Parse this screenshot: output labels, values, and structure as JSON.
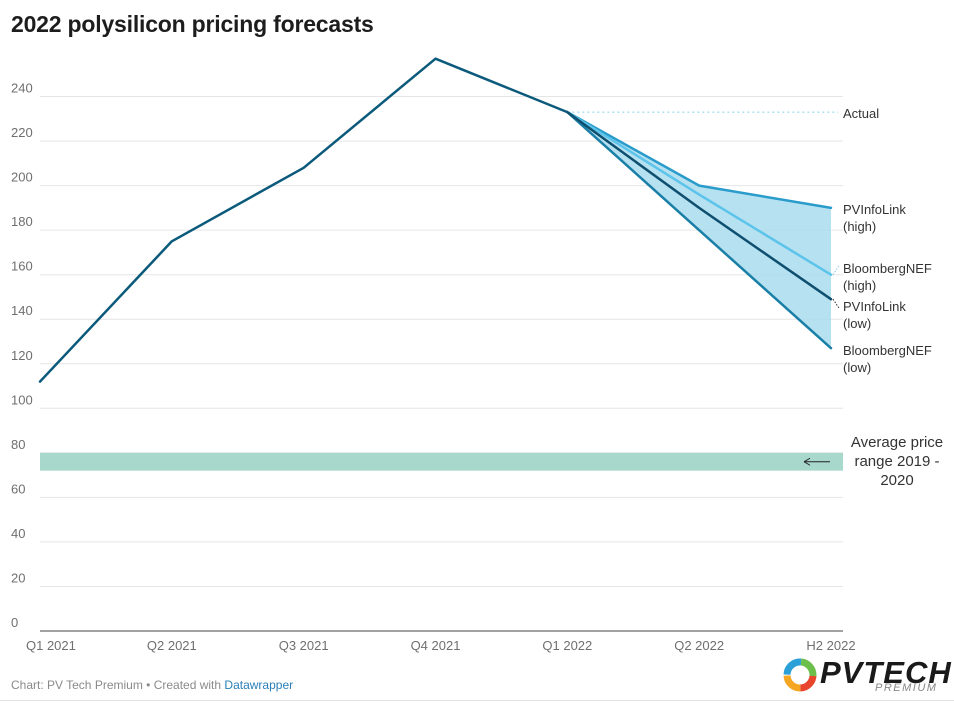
{
  "title": "2022 polysilicon pricing forecasts",
  "footer": {
    "source": "Chart: PV Tech Premium • Created with ",
    "tool": "Datawrapper"
  },
  "logo": {
    "main": "PVTECH",
    "sub": "PREMIUM"
  },
  "range_label_lines": [
    "Average price",
    "range 2019 -",
    "2020"
  ],
  "colors": {
    "historical": "#0c5a7b",
    "pvinfolink_high": "#2a9ccb",
    "bnef_high": "#5cc4ea",
    "pvinfolink_low": "#0e4e6e",
    "bnef_low": "#1a7fa6",
    "forecast_band": "#a9dcef",
    "avg_range": "#a8d8cb",
    "actual_ref": "#7fd2ec"
  },
  "chart_data": {
    "type": "line",
    "title": "2022 polysilicon pricing forecasts",
    "categories": [
      "Q1 2021",
      "Q2 2021",
      "Q3 2021",
      "Q4 2021",
      "Q1 2022",
      "Q2 2022",
      "H2 2022"
    ],
    "ylim": [
      0,
      260
    ],
    "yticks": [
      0,
      20,
      40,
      60,
      80,
      100,
      120,
      140,
      160,
      180,
      200,
      220,
      240
    ],
    "grid": true,
    "series": [
      {
        "name": "Actual",
        "values": [
          112,
          175,
          208,
          257,
          233,
          null,
          null
        ]
      },
      {
        "name": "PVInfoLink (high)",
        "values": [
          null,
          null,
          null,
          null,
          233,
          200,
          190
        ]
      },
      {
        "name": "BloombergNEF (high)",
        "values": [
          null,
          null,
          null,
          null,
          233,
          196,
          160
        ]
      },
      {
        "name": "PVInfoLink (low)",
        "values": [
          null,
          null,
          null,
          null,
          233,
          190,
          149
        ]
      },
      {
        "name": "BloombergNEF (low)",
        "values": [
          null,
          null,
          null,
          null,
          233,
          180,
          127
        ]
      }
    ],
    "series_labels": [
      {
        "lines": [
          "Actual"
        ],
        "value": 233
      },
      {
        "lines": [
          "PVInfoLink",
          "(high)"
        ],
        "value": 190
      },
      {
        "lines": [
          "BloombergNEF",
          "(high)"
        ],
        "value": 160
      },
      {
        "lines": [
          "PVInfoLink",
          "(low)"
        ],
        "value": 149
      },
      {
        "lines": [
          "BloombergNEF",
          "(low)"
        ],
        "value": 127
      }
    ],
    "shaded_range": {
      "label": "Average price range 2019 - 2020",
      "y_from": 72,
      "y_to": 80
    }
  }
}
